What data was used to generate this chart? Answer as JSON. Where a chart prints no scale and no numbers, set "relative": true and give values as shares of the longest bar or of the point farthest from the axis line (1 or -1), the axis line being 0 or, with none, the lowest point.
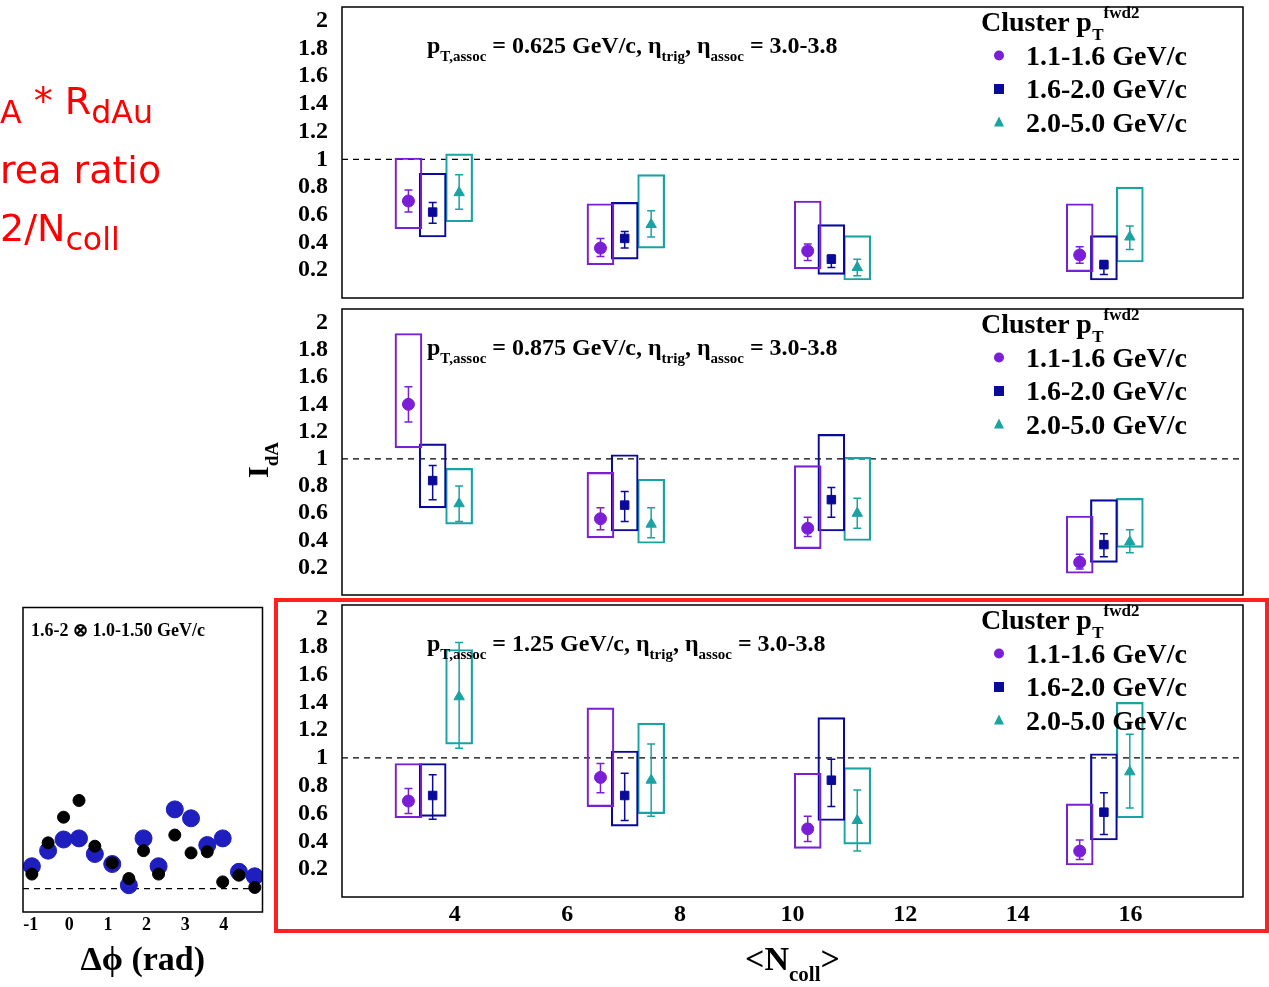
{
  "chart_data": [
    {
      "type": "scatter",
      "xlim": [
        2,
        18
      ],
      "xticks": [
        4,
        6,
        8,
        10,
        12,
        14,
        16
      ],
      "ylim": [
        0,
        2.1
      ],
      "yticks": [
        0.2,
        0.4,
        0.6,
        0.8,
        1,
        1.2,
        1.4,
        1.6,
        1.8,
        2
      ],
      "tick_labels": "y",
      "grid": false,
      "legend": "top right",
      "legend_title": "Cluster p$_{T}$$^{fwd2}$",
      "annotations": [
        "p$_{T,assoc}$ = 0.625 GeV/c, η$_{trig}$, η$_{assoc}$ = 3.0-3.8"
      ],
      "ref_lines": [
        {
          "axis": "y",
          "value": 1,
          "line_style": "dashed",
          "color": "#000000"
        }
      ],
      "series": [
        {
          "name": "1.1-1.6 GeV/c",
          "color": "#7a1fd6",
          "marker": "circle",
          "x": [
            3.18,
            6.59,
            10.27,
            15.1
          ],
          "values": [
            0.7,
            0.36,
            0.34,
            0.31
          ],
          "errors": [
            [
              0.62,
              0.78
            ],
            [
              0.3,
              0.43
            ],
            [
              0.27,
              0.39
            ],
            [
              0.25,
              0.37
            ]
          ]
        },
        {
          "name": "1.6-2.0 GeV/c",
          "color": "#0a0a9a",
          "marker": "square",
          "x": [
            3.61,
            7.02,
            10.69,
            15.53
          ],
          "values": [
            0.62,
            0.43,
            0.28,
            0.24
          ],
          "errors": [
            [
              0.54,
              0.69
            ],
            [
              0.36,
              0.48
            ],
            [
              0.22,
              0.31
            ],
            [
              0.17,
              0.27
            ]
          ]
        },
        {
          "name": "2.0-5.0 GeV/c",
          "color": "#1aa3a3",
          "marker": "triangle",
          "x": [
            4.08,
            7.49,
            11.15,
            15.99
          ],
          "values": [
            0.76,
            0.53,
            0.22,
            0.44
          ],
          "errors": [
            [
              0.64,
              0.89
            ],
            [
              0.44,
              0.63
            ],
            [
              0.16,
              0.28
            ],
            [
              0.35,
              0.52
            ]
          ]
        },
        {
          "type": "bar",
          "color": "#7a1fd6",
          "x": [
            3.18,
            6.59,
            10.27,
            15.1
          ],
          "base": [
            0.5,
            0.24,
            0.21,
            0.19
          ],
          "values": [
            0.51,
            0.44,
            0.49,
            0.49
          ]
        },
        {
          "type": "bar",
          "color": "#0a0a9a",
          "x": [
            3.61,
            7.02,
            10.69,
            15.53
          ],
          "base": [
            0.44,
            0.28,
            0.17,
            0.13
          ],
          "values": [
            0.46,
            0.41,
            0.36,
            0.32
          ]
        },
        {
          "type": "bar",
          "color": "#1aa3a3",
          "x": [
            4.08,
            7.49,
            11.15,
            15.99
          ],
          "base": [
            0.55,
            0.36,
            0.13,
            0.26
          ],
          "values": [
            0.49,
            0.53,
            0.32,
            0.54
          ]
        }
      ]
    },
    {
      "type": "scatter",
      "ylabel": "I$_{dA}$",
      "xlim": [
        2,
        18
      ],
      "xticks": [
        4,
        6,
        8,
        10,
        12,
        14,
        16
      ],
      "ylim": [
        0,
        2.1
      ],
      "yticks": [
        0.2,
        0.4,
        0.6,
        0.8,
        1,
        1.2,
        1.4,
        1.6,
        1.8,
        2
      ],
      "tick_labels": "y",
      "grid": false,
      "legend": "top right",
      "legend_title": "Cluster p$_{T}$$^{fwd2}$",
      "annotations": [
        "p$_{T,assoc}$ = 0.875 GeV/c, η$_{trig}$, η$_{assoc}$ = 3.0-3.8"
      ],
      "ref_lines": [
        {
          "axis": "y",
          "value": 1,
          "line_style": "dashed",
          "color": "#000000"
        }
      ],
      "series": [
        {
          "name": "1.1-1.6 GeV/c",
          "color": "#7a1fd6",
          "marker": "circle",
          "x": [
            3.18,
            6.59,
            10.27,
            15.1
          ],
          "values": [
            1.4,
            0.56,
            0.49,
            0.24
          ],
          "errors": [
            [
              1.27,
              1.53
            ],
            [
              0.48,
              0.64
            ],
            [
              0.43,
              0.57
            ],
            [
              0.19,
              0.3
            ]
          ]
        },
        {
          "name": "1.6-2.0 GeV/c",
          "color": "#0a0a9a",
          "marker": "square",
          "x": [
            3.61,
            7.02,
            10.69,
            15.53
          ],
          "values": [
            0.84,
            0.66,
            0.7,
            0.37
          ],
          "errors": [
            [
              0.7,
              0.95
            ],
            [
              0.54,
              0.76
            ],
            [
              0.57,
              0.79
            ],
            [
              0.28,
              0.45
            ]
          ]
        },
        {
          "name": "2.0-5.0 GeV/c",
          "color": "#1aa3a3",
          "marker": "triangle",
          "x": [
            4.08,
            7.49,
            11.15,
            15.99
          ],
          "values": [
            0.67,
            0.52,
            0.6,
            0.39
          ],
          "errors": [
            [
              0.54,
              0.8
            ],
            [
              0.42,
              0.64
            ],
            [
              0.49,
              0.71
            ],
            [
              0.31,
              0.48
            ]
          ]
        },
        {
          "type": "bar",
          "color": "#7a1fd6",
          "x": [
            3.18,
            6.59,
            10.27,
            15.1
          ],
          "base": [
            1.08,
            0.42,
            0.34,
            0.16
          ],
          "values": [
            0.84,
            0.48,
            0.61,
            0.42
          ]
        },
        {
          "type": "bar",
          "color": "#0a0a9a",
          "x": [
            3.61,
            7.02,
            10.69,
            15.53
          ],
          "base": [
            0.64,
            0.47,
            0.47,
            0.24
          ],
          "values": [
            0.47,
            0.56,
            0.71,
            0.46
          ]
        },
        {
          "type": "bar",
          "color": "#1aa3a3",
          "x": [
            4.08,
            7.49,
            11.15,
            15.99
          ],
          "base": [
            0.52,
            0.38,
            0.4,
            0.35
          ],
          "values": [
            0.41,
            0.47,
            0.61,
            0.36
          ]
        }
      ]
    },
    {
      "type": "scatter",
      "xlabel": "<N$_{coll}$>",
      "xlim": [
        2,
        18
      ],
      "xticks": [
        4,
        6,
        8,
        10,
        12,
        14,
        16
      ],
      "ylim": [
        0,
        2.1
      ],
      "yticks": [
        0.2,
        0.4,
        0.6,
        0.8,
        1,
        1.2,
        1.4,
        1.6,
        1.8,
        2
      ],
      "grid": false,
      "legend": "top right",
      "legend_title": "Cluster p$_{T}$$^{fwd2}$",
      "annotations": [
        "p$_{T,assoc}$ = 1.25 GeV/c, η$_{trig}$, η$_{assoc}$ = 3.0-3.8"
      ],
      "ref_lines": [
        {
          "axis": "y",
          "value": 1,
          "line_style": "dashed",
          "color": "#000000"
        }
      ],
      "series": [
        {
          "name": "1.1-1.6 GeV/c",
          "color": "#7a1fd6",
          "marker": "circle",
          "x": [
            3.18,
            6.59,
            10.27,
            15.1
          ],
          "values": [
            0.69,
            0.86,
            0.49,
            0.33
          ],
          "errors": [
            [
              0.6,
              0.78
            ],
            [
              0.75,
              0.96
            ],
            [
              0.4,
              0.58
            ],
            [
              0.27,
              0.41
            ]
          ]
        },
        {
          "name": "1.6-2.0 GeV/c",
          "color": "#0a0a9a",
          "marker": "square",
          "x": [
            3.61,
            7.02,
            10.69,
            15.53
          ],
          "values": [
            0.73,
            0.73,
            0.84,
            0.61
          ],
          "errors": [
            [
              0.56,
              0.88
            ],
            [
              0.55,
              0.89
            ],
            [
              0.65,
              0.99
            ],
            [
              0.45,
              0.75
            ]
          ]
        },
        {
          "name": "2.0-5.0 GeV/c",
          "color": "#1aa3a3",
          "marker": "triangle",
          "x": [
            4.08,
            7.49,
            11.15,
            15.99
          ],
          "values": [
            1.44,
            0.84,
            0.55,
            0.9
          ],
          "errors": [
            [
              1.07,
              1.83
            ],
            [
              0.58,
              1.1
            ],
            [
              0.33,
              0.77
            ],
            [
              0.64,
              1.17
            ]
          ]
        },
        {
          "type": "bar",
          "color": "#7a1fd6",
          "x": [
            3.18,
            6.59,
            10.27,
            15.1
          ],
          "base": [
            0.57,
            0.65,
            0.35,
            0.23
          ],
          "values": [
            0.39,
            0.71,
            0.54,
            0.44
          ]
        },
        {
          "type": "bar",
          "color": "#0a0a9a",
          "x": [
            3.61,
            7.02,
            10.69,
            15.53
          ],
          "base": [
            0.58,
            0.51,
            0.55,
            0.41
          ],
          "values": [
            0.38,
            0.54,
            0.74,
            0.62
          ]
        },
        {
          "type": "bar",
          "color": "#1aa3a3",
          "x": [
            4.08,
            7.49,
            11.15,
            15.99
          ],
          "base": [
            1.1,
            0.6,
            0.38,
            0.57
          ],
          "values": [
            0.68,
            0.65,
            0.55,
            0.83
          ]
        }
      ]
    },
    {
      "type": "scatter",
      "relative": true,
      "xlabel": "Δϕ (rad)",
      "xlim": [
        -1.2,
        5
      ],
      "xticks": [
        -1,
        0,
        1,
        2,
        3,
        4
      ],
      "tick_labels": "x",
      "grid": false,
      "marker": "circle",
      "annotations": [
        "1.6-2 ⊗ 1.0-1.50 GeV/c"
      ],
      "ref_lines": [
        {
          "axis": "y",
          "value": 0.21,
          "line_style": "dashed",
          "color": "#000000"
        }
      ],
      "series": [
        {
          "color": "#000000",
          "x": [
            -0.97,
            -0.55,
            -0.15,
            0.25,
            0.66,
            1.11,
            1.54,
            1.92,
            2.31,
            2.73,
            3.15,
            3.57,
            3.97,
            4.39,
            4.8
          ],
          "values": [
            0.34,
            0.62,
            0.85,
            1,
            0.59,
            0.44,
            0.3,
            0.55,
            0.34,
            0.69,
            0.53,
            0.54,
            0.27,
            0.33,
            0.22
          ]
        },
        {
          "color": "#1f1fbf",
          "x": [
            -0.97,
            -0.55,
            -0.15,
            0.25,
            0.66,
            1.11,
            1.54,
            1.92,
            2.31,
            2.73,
            3.15,
            3.57,
            3.97,
            4.39,
            4.8
          ],
          "values": [
            0.41,
            0.55,
            0.65,
            0.66,
            0.52,
            0.43,
            0.24,
            0.66,
            0.41,
            0.92,
            0.84,
            0.6,
            0.66,
            0.36,
            0.32
          ]
        }
      ]
    },
    {
      "type": "other",
      "annotations": [
        "$_{A}$ * R$_{dAu}$",
        "rea ratio",
        "2/N$_{coll}$"
      ]
    }
  ]
}
